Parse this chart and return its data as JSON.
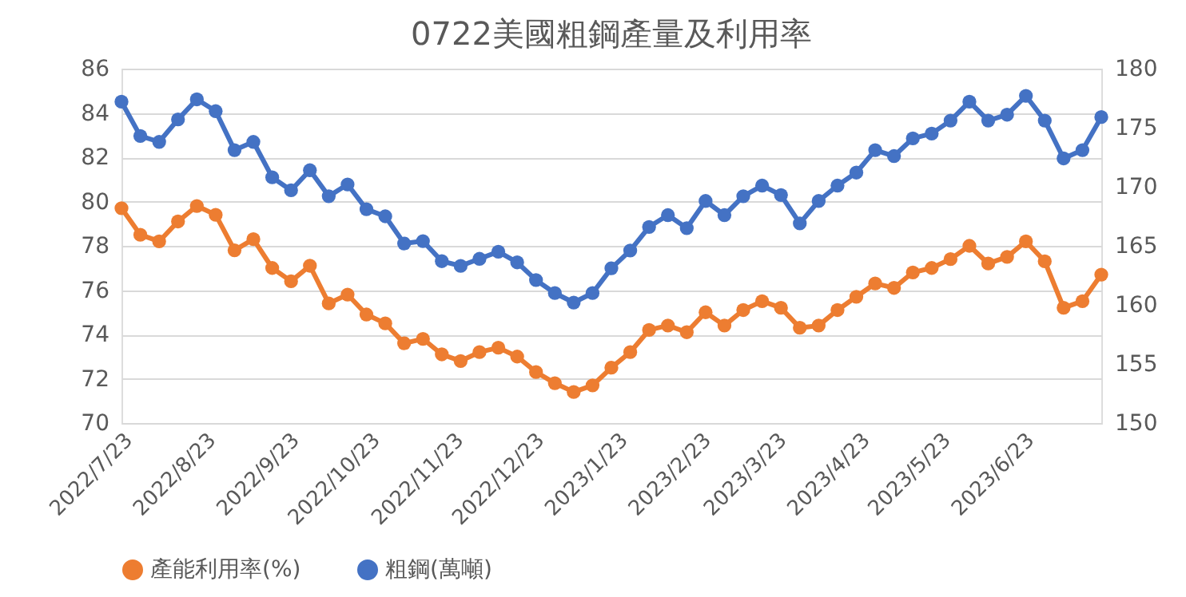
{
  "chart_data": {
    "type": "line",
    "title": "0722美國粗鋼產量及利用率",
    "x": [
      "2022-07-23",
      "2022-07-30",
      "2022-08-06",
      "2022-08-13",
      "2022-08-20",
      "2022-08-27",
      "2022-09-03",
      "2022-09-10",
      "2022-09-17",
      "2022-09-24",
      "2022-10-01",
      "2022-10-08",
      "2022-10-15",
      "2022-10-22",
      "2022-10-29",
      "2022-11-05",
      "2022-11-12",
      "2022-11-19",
      "2022-11-26",
      "2022-12-03",
      "2022-12-10",
      "2022-12-17",
      "2022-12-24",
      "2022-12-31",
      "2023-01-07",
      "2023-01-14",
      "2023-01-21",
      "2023-01-28",
      "2023-02-04",
      "2023-02-11",
      "2023-02-18",
      "2023-02-25",
      "2023-03-04",
      "2023-03-11",
      "2023-03-18",
      "2023-03-25",
      "2023-04-01",
      "2023-04-08",
      "2023-04-15",
      "2023-04-22",
      "2023-04-29",
      "2023-05-06",
      "2023-05-13",
      "2023-05-20",
      "2023-05-27",
      "2023-06-03",
      "2023-06-10",
      "2023-06-17",
      "2023-06-24",
      "2023-07-01",
      "2023-07-08",
      "2023-07-15",
      "2023-07-22"
    ],
    "xlim": [
      "2022-07-23",
      "2023-07-22"
    ],
    "xticks": [
      {
        "value": "2022-07-23",
        "label": "2022/7/23"
      },
      {
        "value": "2022-08-23",
        "label": "2022/8/23"
      },
      {
        "value": "2022-09-23",
        "label": "2022/9/23"
      },
      {
        "value": "2022-10-23",
        "label": "2022/10/23"
      },
      {
        "value": "2022-11-23",
        "label": "2022/11/23"
      },
      {
        "value": "2022-12-23",
        "label": "2022/12/23"
      },
      {
        "value": "2023-01-23",
        "label": "2023/1/23"
      },
      {
        "value": "2023-02-23",
        "label": "2023/2/23"
      },
      {
        "value": "2023-03-23",
        "label": "2023/3/23"
      },
      {
        "value": "2023-04-23",
        "label": "2023/4/23"
      },
      {
        "value": "2023-05-23",
        "label": "2023/5/23"
      },
      {
        "value": "2023-06-23",
        "label": "2023/6/23"
      }
    ],
    "ylim": [
      70,
      86
    ],
    "yticks": [
      70,
      72,
      74,
      76,
      78,
      80,
      82,
      84,
      86
    ],
    "y2lim": [
      150,
      180
    ],
    "y2ticks": [
      150,
      155,
      160,
      165,
      170,
      175,
      180
    ],
    "grid": "y",
    "legend": "bottom",
    "marker": "circle",
    "line_style": "solid",
    "series": [
      {
        "name": "產能利用率(%)",
        "color": "#ed7d31",
        "axis": "y",
        "values": [
          79.7,
          78.5,
          78.2,
          79.1,
          79.8,
          79.4,
          77.8,
          78.3,
          77.0,
          76.4,
          77.1,
          75.4,
          75.8,
          74.9,
          74.5,
          73.6,
          73.8,
          73.1,
          72.8,
          73.2,
          73.4,
          73.0,
          72.3,
          71.8,
          71.4,
          71.7,
          72.5,
          73.2,
          74.2,
          74.4,
          74.1,
          75.0,
          74.4,
          75.1,
          75.5,
          75.2,
          74.3,
          74.4,
          75.1,
          75.7,
          76.3,
          76.1,
          76.8,
          77.0,
          77.4,
          78.0,
          77.2,
          77.5,
          78.2,
          77.3,
          75.2,
          75.5,
          76.7
        ]
      },
      {
        "name": "粗鋼(萬噸)",
        "color": "#4472c4",
        "axis": "y2",
        "values": [
          177.2,
          174.3,
          173.8,
          175.7,
          177.4,
          176.4,
          173.1,
          173.8,
          170.8,
          169.7,
          171.4,
          169.2,
          170.2,
          168.1,
          167.5,
          165.2,
          165.4,
          163.7,
          163.3,
          163.9,
          164.5,
          163.6,
          162.1,
          161.0,
          160.2,
          161.0,
          163.1,
          164.6,
          166.6,
          167.6,
          166.5,
          168.8,
          167.6,
          169.2,
          170.1,
          169.3,
          166.9,
          168.8,
          170.1,
          171.2,
          173.1,
          172.6,
          174.1,
          174.5,
          175.6,
          177.2,
          175.6,
          176.1,
          177.7,
          175.6,
          172.4,
          173.1,
          175.9
        ]
      }
    ]
  }
}
